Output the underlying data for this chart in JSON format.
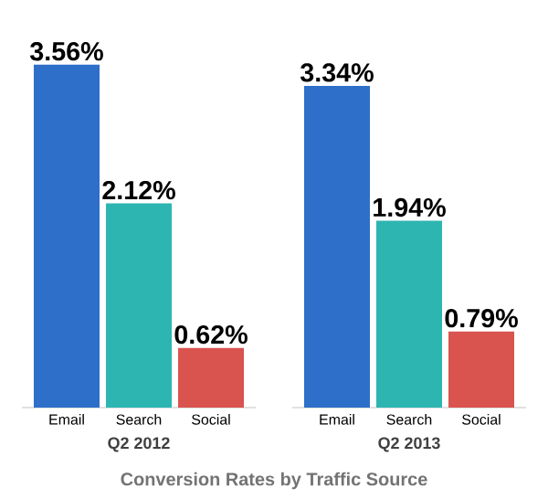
{
  "chart_data": [
    {
      "type": "bar",
      "title": "Conversion Rates by Traffic Source",
      "xlabel": "Q2 2012",
      "categories": [
        "Email",
        "Search",
        "Social"
      ],
      "values": [
        3.56,
        2.12,
        0.62
      ],
      "colors": [
        "#2e6fc9",
        "#2db5b1",
        "#d9534f"
      ],
      "value_labels": [
        "3.56%",
        "2.12%",
        "0.62%"
      ]
    },
    {
      "type": "bar",
      "xlabel": "Q2 2013",
      "categories": [
        "Email",
        "Search",
        "Social"
      ],
      "values": [
        3.34,
        1.94,
        0.79
      ],
      "colors": [
        "#2e6fc9",
        "#2db5b1",
        "#d9534f"
      ],
      "value_labels": [
        "3.34%",
        "1.94%",
        "0.79%"
      ]
    }
  ]
}
